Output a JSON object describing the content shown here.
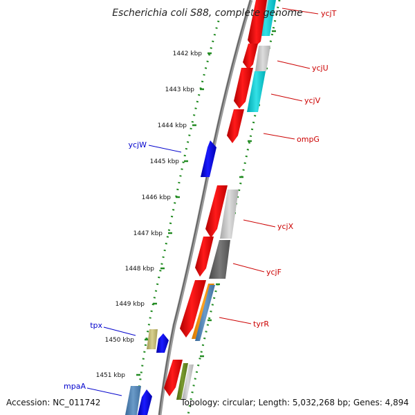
{
  "title": "Escherichia coli S88, complete genome",
  "accession": "Accession: NC_011742",
  "topology": "Topology: circular; Length: 5,032,268 bp; Genes: 4,894",
  "colors": {
    "forward_label": "#cc0000",
    "reverse_label": "#0000cc",
    "tick": "#228B22",
    "backbone": "#888888"
  },
  "ticks": [
    {
      "label": "1442 kbp"
    },
    {
      "label": "1443 kbp"
    },
    {
      "label": "1444 kbp"
    },
    {
      "label": "1445 kbp"
    },
    {
      "label": "1446 kbp"
    },
    {
      "label": "1447 kbp"
    },
    {
      "label": "1448 kbp"
    },
    {
      "label": "1449 kbp"
    },
    {
      "label": "1450 kbp"
    },
    {
      "label": "1451 kbp"
    }
  ],
  "genes": [
    {
      "label": "ycjT",
      "strand": "forward"
    },
    {
      "label": "ycjU",
      "strand": "forward"
    },
    {
      "label": "ycjV",
      "strand": "forward"
    },
    {
      "label": "ompG",
      "strand": "forward"
    },
    {
      "label": "ycjW",
      "strand": "reverse"
    },
    {
      "label": "ycjX",
      "strand": "forward"
    },
    {
      "label": "ycjF",
      "strand": "forward"
    },
    {
      "label": "tyrR",
      "strand": "forward"
    },
    {
      "label": "tpx",
      "strand": "reverse"
    },
    {
      "label": "mpaA",
      "strand": "reverse"
    }
  ]
}
